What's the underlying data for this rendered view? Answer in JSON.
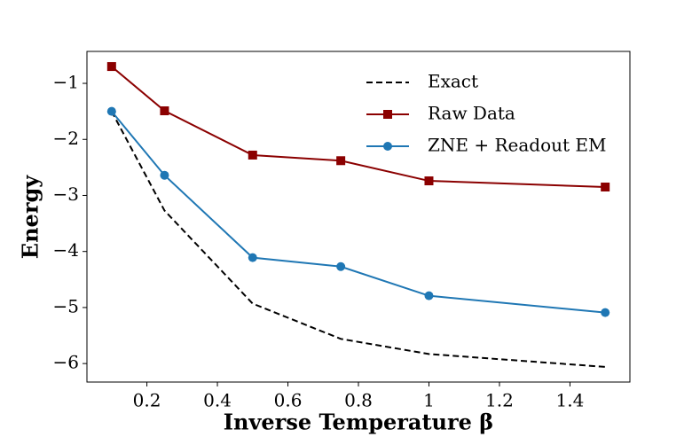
{
  "chart_data": {
    "type": "line",
    "x_label": "Inverse Temperature β",
    "y_label": "Energy",
    "x": [
      0.1,
      0.25,
      0.5,
      0.75,
      1.0,
      1.5
    ],
    "series": [
      {
        "name": "Exact",
        "color": "#000000",
        "linestyle": "dashed",
        "marker": "none",
        "values": [
          -1.5,
          -3.27,
          -4.93,
          -5.56,
          -5.83,
          -6.06
        ]
      },
      {
        "name": "Raw Data",
        "color": "#8b0000",
        "linestyle": "solid",
        "marker": "square",
        "values": [
          -0.7,
          -1.49,
          -2.28,
          -2.38,
          -2.74,
          -2.85
        ]
      },
      {
        "name": "ZNE + Readout EM",
        "color": "#1f77b4",
        "linestyle": "solid",
        "marker": "circle",
        "values": [
          -1.5,
          -2.64,
          -4.11,
          -4.27,
          -4.79,
          -5.09
        ]
      }
    ],
    "xlim": [
      0.03,
      1.57
    ],
    "xticks": [
      0.2,
      0.4,
      0.6,
      0.8,
      1.0,
      1.2,
      1.4
    ],
    "ylim": [
      -6.33,
      -0.43
    ],
    "yticks": [
      {
        "value": -6,
        "label": "−6"
      },
      {
        "value": -5,
        "label": "−5"
      },
      {
        "value": -4,
        "label": "−4"
      },
      {
        "value": -3,
        "label": "−3"
      },
      {
        "value": -2,
        "label": "−2"
      },
      {
        "value": -1,
        "label": "−1"
      }
    ],
    "legend": "upper right",
    "grid": false
  }
}
